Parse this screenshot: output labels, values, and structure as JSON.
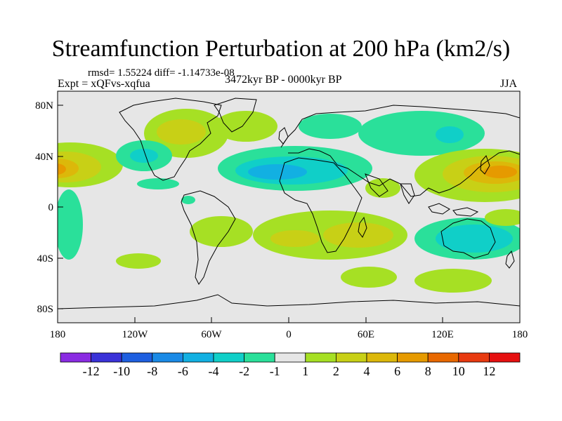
{
  "figure": {
    "title": "Streamfunction Perturbation at 200 hPa (km2/s)",
    "stats": "rmsd= 1.55224 diff= -1.14733e-08",
    "experiment": "Expt = xQFvs-xqfua",
    "period": "3472kyr BP - 0000kyr BP",
    "season": "JJA"
  },
  "axes": {
    "lat_labels": [
      "80N",
      "40N",
      "0",
      "40S",
      "80S"
    ],
    "lon_labels": [
      "180",
      "120W",
      "60W",
      "0",
      "60E",
      "120E",
      "180"
    ]
  },
  "colorbar": {
    "labels": [
      "-12",
      "-10",
      "-8",
      "-6",
      "-4",
      "-2",
      "-1",
      "1",
      "2",
      "4",
      "6",
      "8",
      "10",
      "12"
    ],
    "colors": [
      "#8a2be2",
      "#3a32d8",
      "#1e5fe0",
      "#1a8ae6",
      "#12b0e2",
      "#10cfc8",
      "#2ae09a",
      "#e6e6e6",
      "#a6e024",
      "#c8d016",
      "#dcb80a",
      "#e69a00",
      "#e86800",
      "#e83a10",
      "#e61010"
    ]
  },
  "map_colors": {
    "background": "#e6e6e6",
    "coast": "#000000"
  }
}
